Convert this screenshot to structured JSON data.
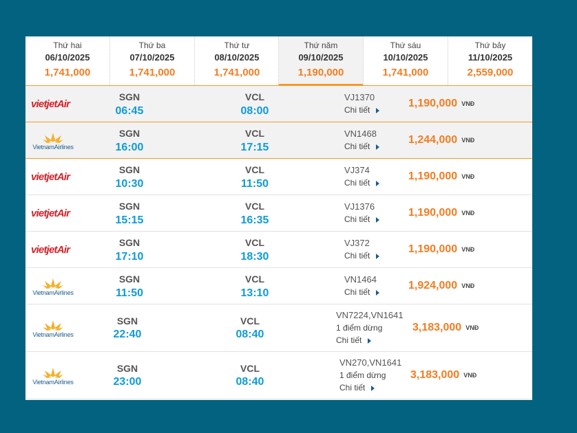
{
  "days": [
    {
      "name": "Thứ hai",
      "date": "06/10/2025",
      "price": "1,741,000"
    },
    {
      "name": "Thứ ba",
      "date": "07/10/2025",
      "price": "1,741,000"
    },
    {
      "name": "Thứ tư",
      "date": "08/10/2025",
      "price": "1,741,000"
    },
    {
      "name": "Thứ năm",
      "date": "09/10/2025",
      "price": "1,190,000"
    },
    {
      "name": "Thứ sáu",
      "date": "10/10/2025",
      "price": "1,741,000"
    },
    {
      "name": "Thứ bảy",
      "date": "11/10/2025",
      "price": "2,559,000"
    }
  ],
  "active_day": "09/10/2025",
  "flights": [
    {
      "airline": "vietjet-air",
      "airline_label": "vietjetAir",
      "from": "SGN",
      "dep": "06:45",
      "to": "VCL",
      "arr": "08:00",
      "flight_no": "VJ1370",
      "detail": "Chi tiết",
      "price": "1,190,000",
      "currency": "VNĐ"
    },
    {
      "airline": "vietnam-airlines",
      "airline_label": "VietnamAirlines",
      "from": "SGN",
      "dep": "16:00",
      "to": "VCL",
      "arr": "17:15",
      "flight_no": "VN1468",
      "detail": "Chi tiết",
      "price": "1,244,000",
      "currency": "VNĐ"
    },
    {
      "airline": "vietjet-air",
      "airline_label": "vietjetAir",
      "from": "SGN",
      "dep": "10:30",
      "to": "VCL",
      "arr": "11:50",
      "flight_no": "VJ374",
      "detail": "Chi tiết",
      "price": "1,190,000",
      "currency": "VNĐ"
    },
    {
      "airline": "vietjet-air",
      "airline_label": "vietjetAir",
      "from": "SGN",
      "dep": "15:15",
      "to": "VCL",
      "arr": "16:35",
      "flight_no": "VJ1376",
      "detail": "Chi tiết",
      "price": "1,190,000",
      "currency": "VNĐ"
    },
    {
      "airline": "vietjet-air",
      "airline_label": "vietjetAir",
      "from": "SGN",
      "dep": "17:10",
      "to": "VCL",
      "arr": "18:30",
      "flight_no": "VJ372",
      "detail": "Chi tiết",
      "price": "1,190,000",
      "currency": "VNĐ"
    },
    {
      "airline": "vietnam-airlines",
      "airline_label": "VietnamAirlines",
      "from": "SGN",
      "dep": "11:50",
      "to": "VCL",
      "arr": "13:10",
      "flight_no": "VN1464",
      "detail": "Chi tiết",
      "price": "1,924,000",
      "currency": "VNĐ"
    },
    {
      "airline": "vietnam-airlines",
      "airline_label": "VietnamAirlines",
      "from": "SGN",
      "dep": "22:40",
      "to": "VCL",
      "arr": "08:40",
      "flight_no": "VN7224,VN1641",
      "stops": "1 điểm dừng",
      "detail": "Chi tiết",
      "price": "3,183,000",
      "currency": "VNĐ"
    },
    {
      "airline": "vietnam-airlines",
      "airline_label": "VietnamAirlines",
      "from": "SGN",
      "dep": "23:00",
      "to": "VCL",
      "arr": "08:40",
      "flight_no": "VN270,VN1641",
      "stops": "1 điểm dừng",
      "detail": "Chi tiết",
      "price": "3,183,000",
      "currency": "VNĐ"
    }
  ],
  "colors": {
    "accent": "#f47c20",
    "time": "#0e9bd8",
    "background": "#02627f",
    "highlight": "#f2f2f2"
  }
}
